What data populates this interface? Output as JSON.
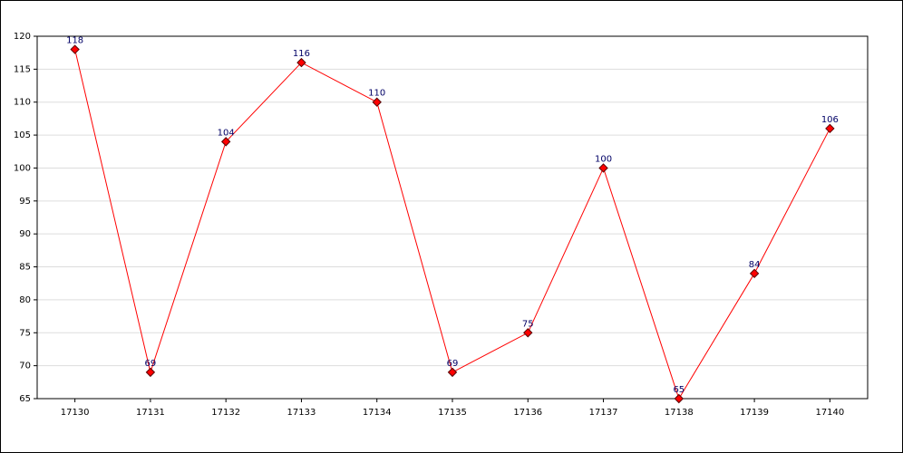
{
  "chart_data": {
    "type": "line",
    "categories": [
      "17130",
      "17131",
      "17132",
      "17133",
      "17134",
      "17135",
      "17136",
      "17137",
      "17138",
      "17139",
      "17140"
    ],
    "series": [
      {
        "color": "#ff0000",
        "values": [
          118,
          69,
          104,
          116,
          110,
          69,
          75,
          100,
          65,
          84,
          106
        ]
      }
    ],
    "ylim": [
      65,
      120
    ],
    "yticks": [
      65,
      70,
      75,
      80,
      85,
      90,
      95,
      100,
      105,
      110,
      115,
      120
    ],
    "grid": true,
    "marker_color": "#ff0000",
    "label_color": "#000066"
  }
}
